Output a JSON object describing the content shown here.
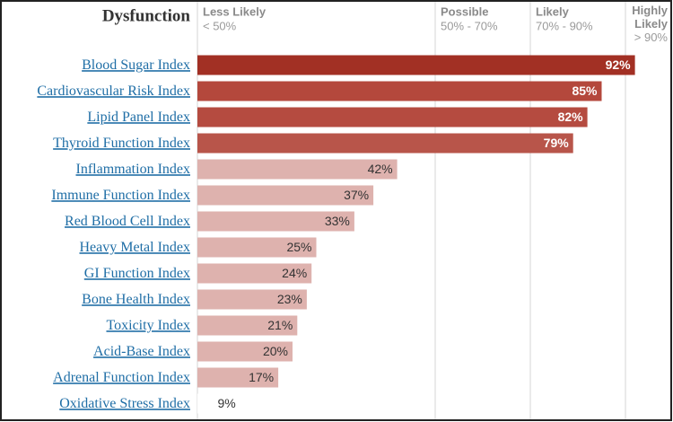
{
  "chart_data": {
    "type": "bar",
    "orientation": "horizontal",
    "title": "Dysfunction",
    "categories": [
      "Blood Sugar Index",
      "Cardiovascular Risk Index",
      "Lipid Panel Index",
      "Thyroid Function Index",
      "Inflammation Index",
      "Immune Function Index",
      "Red Blood Cell Index",
      "Heavy Metal Index",
      "GI Function Index",
      "Bone Health Index",
      "Toxicity Index",
      "Acid-Base Index",
      "Adrenal Function Index",
      "Oxidative Stress Index"
    ],
    "values": [
      92,
      85,
      82,
      79,
      42,
      37,
      33,
      25,
      24,
      23,
      21,
      20,
      17,
      9
    ],
    "value_labels": [
      "92%",
      "85%",
      "82%",
      "79%",
      "42%",
      "37%",
      "33%",
      "25%",
      "24%",
      "23%",
      "21%",
      "20%",
      "17%",
      "9%"
    ],
    "colors": [
      "#a23024",
      "#b4483c",
      "#b54b40",
      "#b8554a",
      "#deb2ae",
      "#deb2ae",
      "#deb2ae",
      "#deb2ae",
      "#deb2ae",
      "#deb2ae",
      "#deb2ae",
      "#deb2ae",
      "#deb2ae",
      "#ffffff"
    ],
    "xlim": [
      0,
      100
    ],
    "zones": [
      {
        "label": "Less Likely",
        "range": "< 50%",
        "from": 0
      },
      {
        "label": "Possible",
        "range": "50% - 70%",
        "from": 50
      },
      {
        "label": "Likely",
        "range": "70% - 90%",
        "from": 70
      },
      {
        "label": "Highly Likely",
        "range": "> 90%",
        "from": 90
      }
    ]
  }
}
